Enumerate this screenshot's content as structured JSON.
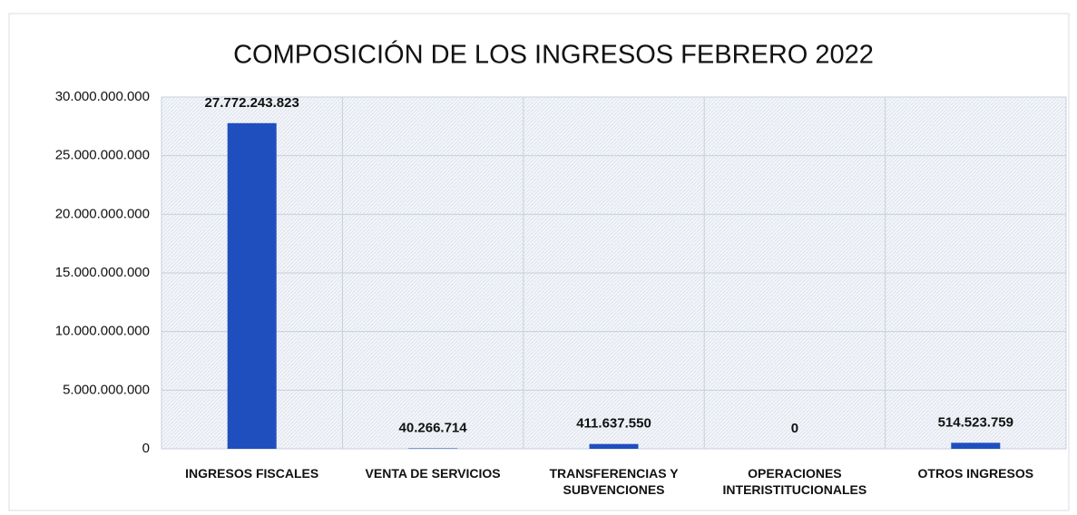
{
  "chart_data": {
    "type": "bar",
    "title": "COMPOSICIÓN DE LOS INGRESOS FEBRERO 2022",
    "categories": [
      "INGRESOS FISCALES",
      "VENTA DE SERVICIOS",
      "TRANSFERENCIAS Y SUBVENCIONES",
      "OPERACIONES INTERISTITUCIONALES",
      "OTROS INGRESOS"
    ],
    "values": [
      27772243823,
      40266714,
      411637550,
      0,
      514523759
    ],
    "value_labels": [
      "27.772.243.823",
      "40.266.714",
      "411.637.550",
      "0",
      "514.523.759"
    ],
    "color": "#1f4fbf",
    "ylim": [
      0,
      30000000000
    ],
    "yticks": [
      0,
      {
        "value": 5000000000,
        "label": "5.000.000.000"
      },
      {
        "value": 10000000000,
        "label": "10.000.000.000"
      },
      {
        "value": 15000000000,
        "label": "15.000.000.000"
      },
      {
        "value": 20000000000,
        "label": "20.000.000.000"
      },
      {
        "value": 25000000000,
        "label": "25.000.000.000"
      },
      {
        "value": 30000000000,
        "label": "30.000.000.000"
      }
    ],
    "grid": true
  }
}
